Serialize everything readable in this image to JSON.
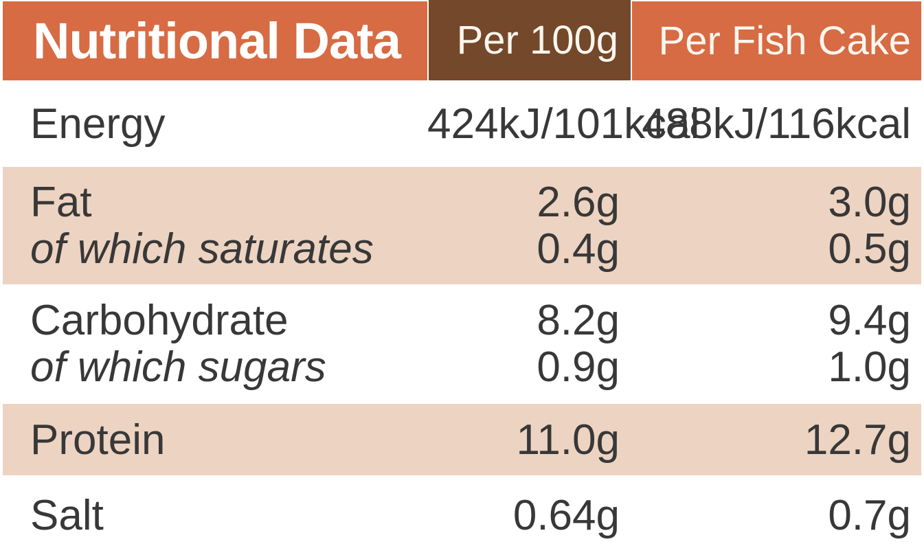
{
  "colors": {
    "orange": "#D76B43",
    "brown": "#74482A",
    "peach": "#EDD3C1",
    "text": "#383838",
    "header_text": "#FCF6EF",
    "title_text": "#FFFFFF"
  },
  "header": {
    "title": "Nutritional Data",
    "per_100g_label": "Per 100g",
    "per_item_label": "Per Fish Cake"
  },
  "rows": [
    {
      "name": "energy",
      "label": "Energy",
      "values": [
        "424kJ/101kcal",
        "488kJ/116kcal"
      ],
      "shaded": false
    },
    {
      "name": "fat",
      "label": "Fat",
      "sublabel": "of which saturates",
      "values": [
        "2.6g",
        "3.0g"
      ],
      "subvalues": [
        "0.4g",
        "0.5g"
      ],
      "shaded": true
    },
    {
      "name": "carbohydrate",
      "label": "Carbohydrate",
      "sublabel": "of which sugars",
      "values": [
        "8.2g",
        "9.4g"
      ],
      "subvalues": [
        "0.9g",
        "1.0g"
      ],
      "shaded": false
    },
    {
      "name": "protein",
      "label": "Protein",
      "values": [
        "11.0g",
        "12.7g"
      ],
      "shaded": true
    },
    {
      "name": "salt",
      "label": "Salt",
      "values": [
        "0.64g",
        "0.7g"
      ],
      "shaded": false
    }
  ]
}
